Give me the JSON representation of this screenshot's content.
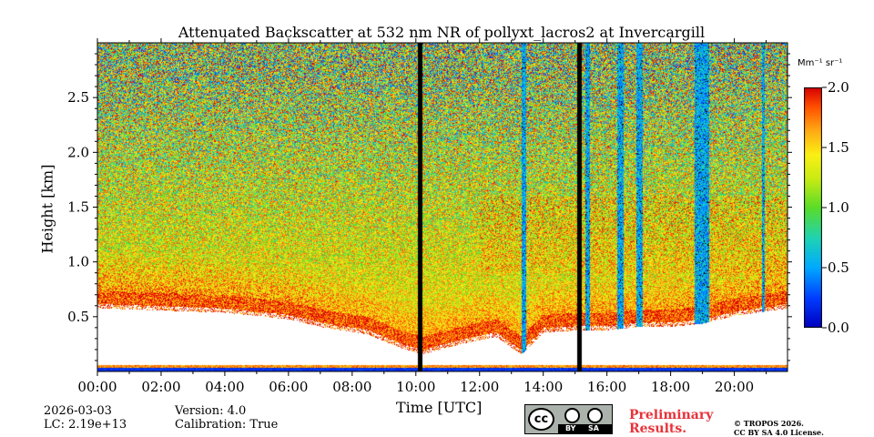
{
  "chart_data": {
    "type": "heatmap",
    "title": "Attenuated Backscatter at 532 nm NR of pollyxt_lacros2 at Invercargill",
    "xlabel": "Time [UTC]",
    "ylabel": "Height [km]",
    "xlim_hours": [
      0,
      21.67
    ],
    "ylim_km": [
      0,
      3.0
    ],
    "x_ticks": [
      "00:00",
      "02:00",
      "04:00",
      "06:00",
      "08:00",
      "10:00",
      "12:00",
      "14:00",
      "16:00",
      "18:00",
      "20:00"
    ],
    "x_tick_hours": [
      0,
      2,
      4,
      6,
      8,
      10,
      12,
      14,
      16,
      18,
      20
    ],
    "y_ticks": [
      "0.5",
      "1.0",
      "1.5",
      "2.0",
      "2.5"
    ],
    "y_tick_values": [
      0.5,
      1.0,
      1.5,
      2.0,
      2.5
    ],
    "colorbar": {
      "unit": "Mm⁻¹ sr⁻¹",
      "range": [
        0.0,
        2.0
      ],
      "ticks": [
        "0.0",
        "0.5",
        "1.0",
        "1.5",
        "2.0"
      ],
      "tick_values": [
        0.0,
        0.5,
        1.0,
        1.5,
        2.0
      ]
    },
    "boundary_layer_top_km": {
      "hours": [
        0,
        2,
        4,
        6,
        7,
        8.5,
        9.5,
        10.2,
        11.5,
        12.5,
        13.3,
        14,
        15.2,
        16,
        17,
        18,
        19,
        20,
        21.67
      ],
      "values": [
        0.62,
        0.6,
        0.58,
        0.52,
        0.45,
        0.38,
        0.26,
        0.2,
        0.3,
        0.36,
        0.2,
        0.4,
        0.42,
        0.42,
        0.45,
        0.45,
        0.48,
        0.55,
        0.62
      ]
    },
    "data_gaps_hours": [
      [
        10.05,
        10.2
      ],
      [
        15.05,
        15.2
      ]
    ],
    "cloud_columns_hours": [
      [
        13.3,
        13.45
      ],
      [
        15.3,
        15.45
      ],
      [
        16.3,
        16.5
      ],
      [
        16.9,
        17.1
      ],
      [
        18.75,
        19.2
      ],
      [
        20.85,
        20.95
      ]
    ]
  },
  "footer": {
    "date": "2026-03-03",
    "lc": "LC: 2.19e+13",
    "version": "Version: 4.0",
    "calibration": "Calibration: True",
    "cc_label": "cc",
    "by_label": "BY",
    "sa_label": "SA",
    "preliminary_line1": "Preliminary",
    "preliminary_line2": "Results.",
    "copyright_line1": "© TROPOS 2026.",
    "copyright_line2": "CC BY SA 4.0 License."
  },
  "colors": {
    "background": "#ffffff",
    "axis": "#000000",
    "preliminary": "#e8333a"
  }
}
